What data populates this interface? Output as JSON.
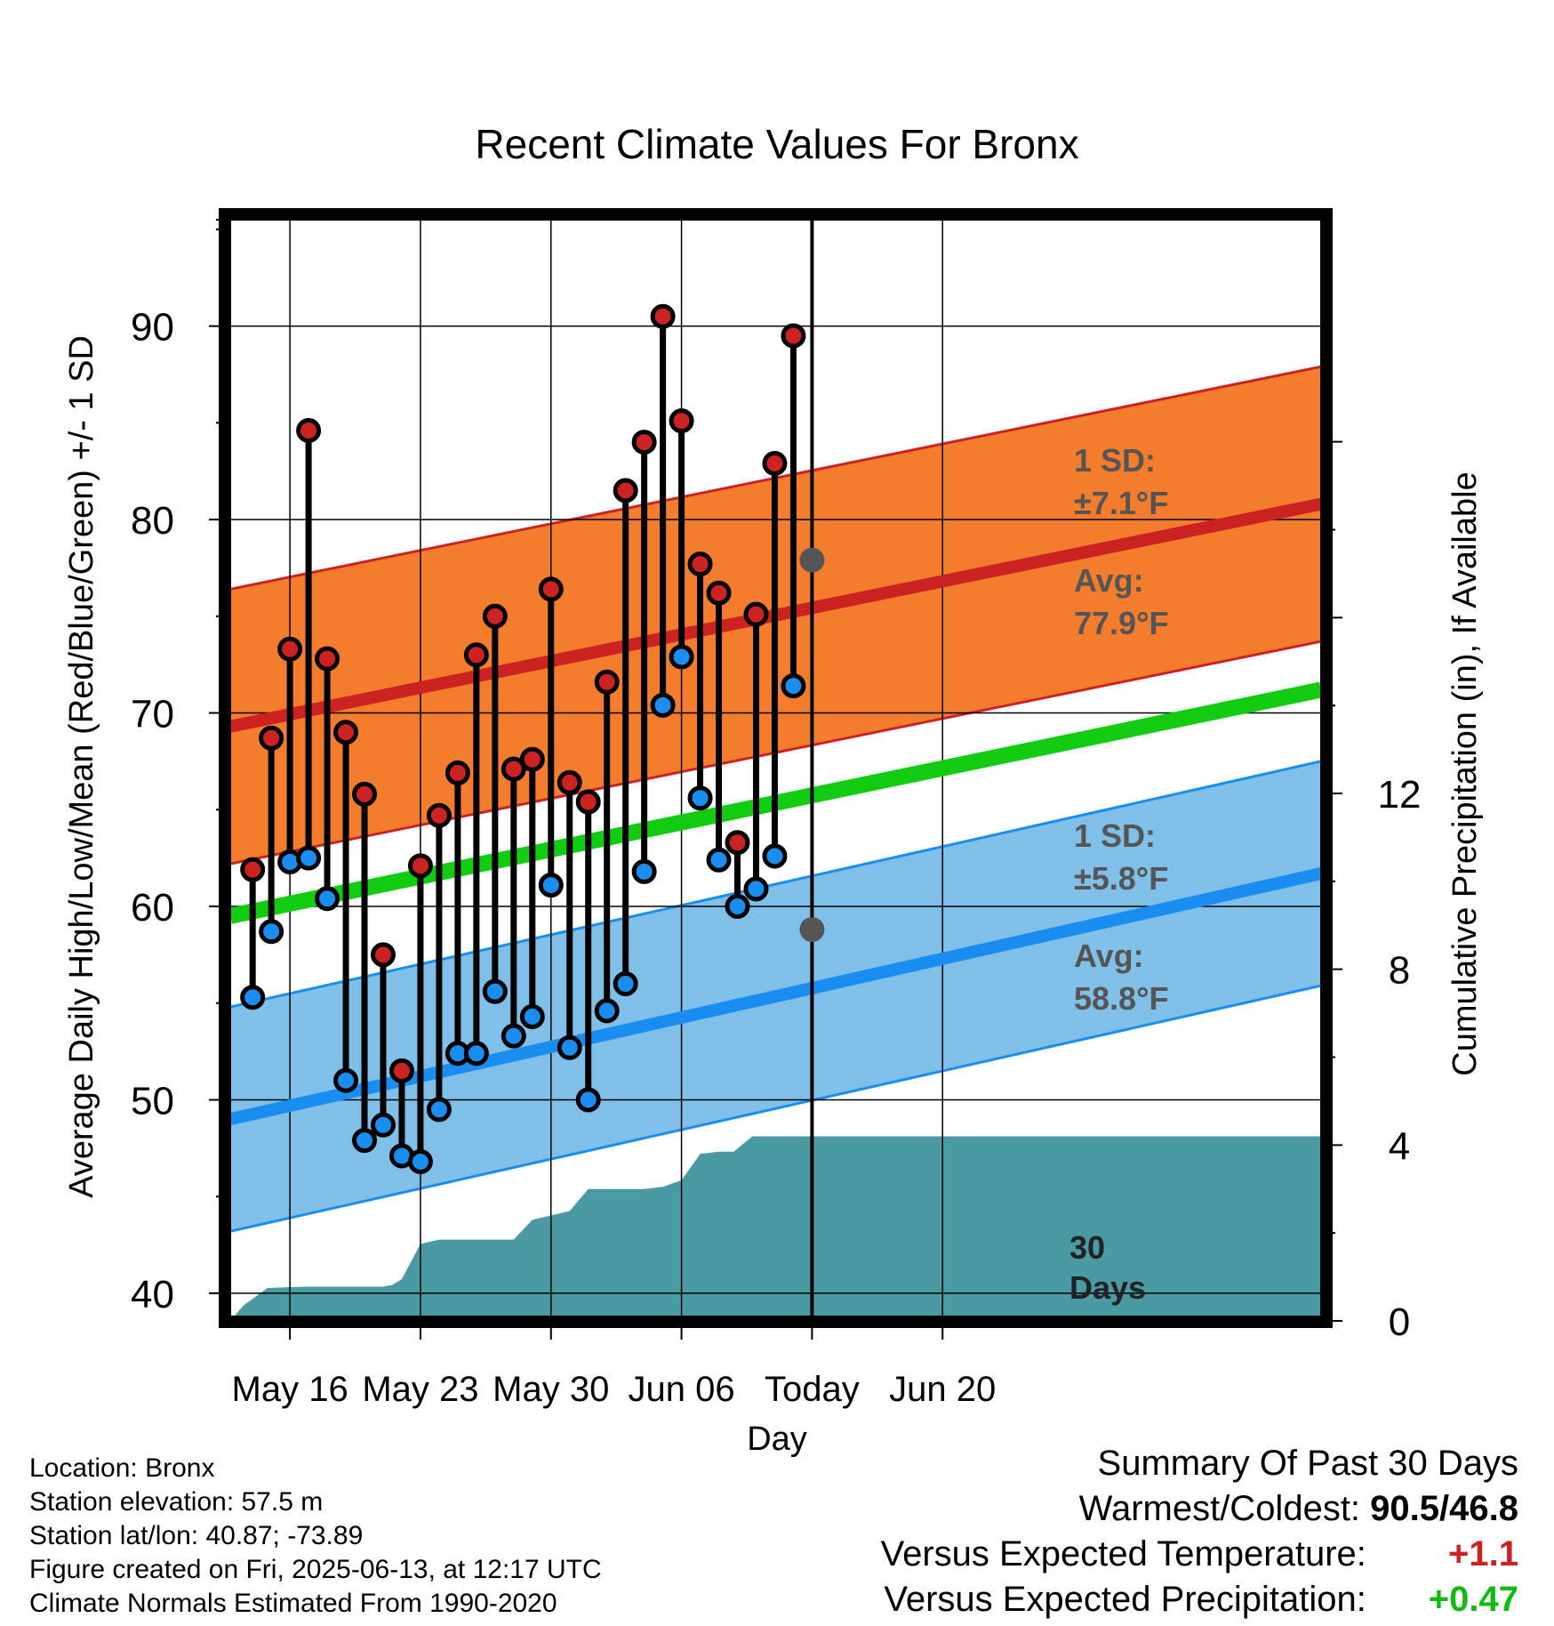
{
  "chart_data": {
    "type": "line",
    "title": "Recent Climate Values For Bronx",
    "xlabel": "Day",
    "ylabel": "Average Daily High/Low/Mean (Red/Blue/Green) +/- 1 SD",
    "y2label": "Cumulative Precipitation (in), If Available",
    "ylim": [
      38.8,
      95.5
    ],
    "y2lim": [
      0,
      21
    ],
    "xlim": [
      12.8,
      71.3
    ],
    "yticks": [
      40,
      50,
      60,
      70,
      80,
      90
    ],
    "y2ticks": [
      0,
      4,
      8,
      12
    ],
    "xticks": [
      {
        "x": 16,
        "label": "May 16"
      },
      {
        "x": 23,
        "label": "May 23"
      },
      {
        "x": 30,
        "label": "May 30"
      },
      {
        "x": 37,
        "label": "Jun 06"
      },
      {
        "x": 44,
        "label": "Today"
      },
      {
        "x": 51,
        "label": "Jun 20"
      }
    ],
    "grid": true,
    "today_x": 44,
    "today_label_line1": "30",
    "today_label_line2": "Days",
    "days": [
      14,
      15,
      16,
      17,
      18,
      19,
      20,
      21,
      22,
      23,
      24,
      25,
      26,
      27,
      28,
      29,
      30,
      31,
      32,
      33,
      34,
      35,
      36,
      37,
      38,
      39,
      40,
      41,
      42,
      43
    ],
    "daily_high": [
      61.9,
      68.7,
      73.3,
      84.6,
      72.8,
      69.0,
      65.8,
      57.5,
      51.5,
      62.1,
      64.7,
      66.9,
      73.0,
      75.0,
      67.1,
      67.6,
      76.4,
      66.4,
      65.4,
      71.6,
      81.5,
      84.0,
      90.5,
      85.1,
      77.7,
      76.2,
      63.3,
      75.1,
      82.9,
      89.5
    ],
    "daily_low": [
      55.3,
      58.7,
      62.3,
      62.5,
      60.4,
      51.0,
      47.9,
      48.7,
      47.1,
      46.8,
      49.5,
      52.4,
      52.4,
      55.6,
      53.3,
      54.3,
      61.1,
      52.7,
      50.0,
      54.6,
      56.0,
      61.8,
      70.4,
      72.9,
      65.6,
      62.4,
      60.0,
      60.9,
      62.6,
      71.4
    ],
    "normal_high": {
      "x": [
        12.8,
        71.3
      ],
      "y": [
        69.3,
        80.8
      ]
    },
    "normal_low": {
      "x": [
        12.8,
        71.3
      ],
      "y": [
        49.0,
        61.7
      ]
    },
    "normal_mean": {
      "x": [
        12.8,
        71.3
      ],
      "y": [
        59.5,
        71.2
      ]
    },
    "high_sd": 7.1,
    "low_sd": 5.8,
    "today_high_avg": 77.9,
    "today_low_avg": 58.8,
    "high_sd_label": {
      "line1": "1 SD:",
      "line2": "±7.1°F"
    },
    "low_sd_label": {
      "line1": "1 SD:",
      "line2": "±5.8°F"
    },
    "high_avg_label": {
      "line1": "Avg:",
      "line2": "77.9°F"
    },
    "low_avg_label": {
      "line1": "Avg:",
      "line2": "58.8°F"
    },
    "precip_cumulative": {
      "x": [
        12.8,
        13.5,
        14.8,
        16.0,
        17.0,
        18.0,
        19.0,
        20.0,
        21.0,
        21.5,
        22.0,
        23.0,
        24.0,
        25.0,
        26.0,
        27.0,
        28.0,
        29.0,
        30.0,
        31.0,
        32.0,
        33.0,
        34.0,
        35.0,
        36.0,
        37.0,
        38.0,
        39.0,
        39.8,
        40.8,
        42.0,
        44.0,
        71.3
      ],
      "y": [
        0,
        0.35,
        0.75,
        0.77,
        0.78,
        0.78,
        0.78,
        0.78,
        0.78,
        0.82,
        0.95,
        1.75,
        1.85,
        1.85,
        1.85,
        1.85,
        1.85,
        2.3,
        2.4,
        2.5,
        3.0,
        3.0,
        3.0,
        3.0,
        3.05,
        3.2,
        3.8,
        3.85,
        3.85,
        4.2,
        4.2,
        4.2,
        4.2
      ]
    },
    "colors": {
      "high_band": "#f47c2d",
      "high_line": "#cc2222",
      "low_band": "#80c0e8",
      "low_line": "#1a8ef0",
      "mean_line": "#11cc11",
      "precip": "#4a9aa4",
      "high_dot": "#cc2222",
      "low_dot": "#1a8ef0",
      "annot_text": "#555555",
      "today_dot": "#555555"
    }
  },
  "footer": {
    "location": "Location: Bronx",
    "elevation": "Station elevation: 57.5 m",
    "latlon": "Station lat/lon: 40.87; -73.89",
    "created": "Figure created on Fri, 2025-06-13, at 12:17 UTC",
    "normals": "Climate Normals Estimated From 1990-2020"
  },
  "summary": {
    "title": "Summary Of Past 30 Days",
    "warmest_label": "Warmest/Coldest:",
    "warmest_value": "90.5/46.8",
    "temp_label": "Versus Expected Temperature:",
    "temp_value": "+1.1",
    "temp_color": "#cc2222",
    "precip_label": "Versus Expected Precipitation:",
    "precip_value": "+0.47",
    "precip_color": "#11bb11"
  }
}
